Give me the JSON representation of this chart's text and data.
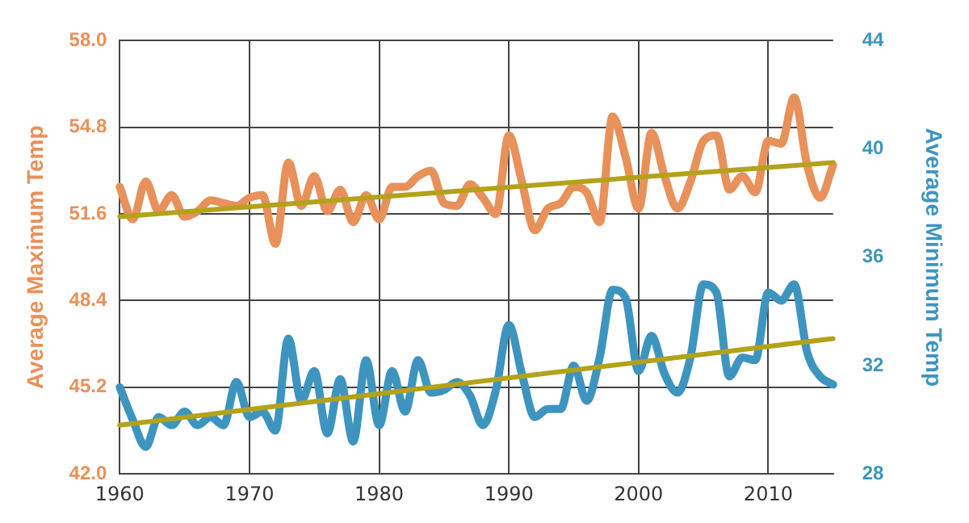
{
  "chart_data": {
    "type": "line",
    "ylabel": "Average Maximum Temp",
    "y2label": "Average Minimum Temp",
    "x": [
      1960,
      1961,
      1962,
      1963,
      1964,
      1965,
      1966,
      1967,
      1968,
      1969,
      1970,
      1971,
      1972,
      1973,
      1974,
      1975,
      1976,
      1977,
      1978,
      1979,
      1980,
      1981,
      1982,
      1983,
      1984,
      1985,
      1986,
      1987,
      1988,
      1989,
      1990,
      1991,
      1992,
      1993,
      1994,
      1995,
      1996,
      1997,
      1998,
      1999,
      2000,
      2001,
      2002,
      2003,
      2004,
      2005,
      2006,
      2007,
      2008,
      2009,
      2010,
      2011,
      2012,
      2013,
      2014,
      2015
    ],
    "series": [
      {
        "color": "#e8915a",
        "axis": "y",
        "values": [
          52.6,
          51.4,
          52.8,
          51.7,
          52.3,
          51.5,
          51.7,
          52.1,
          52.0,
          51.9,
          52.2,
          52.3,
          50.5,
          53.5,
          51.9,
          53.0,
          51.7,
          52.5,
          51.3,
          52.3,
          51.4,
          52.6,
          52.6,
          53.0,
          53.2,
          52.0,
          51.9,
          52.7,
          52.2,
          51.6,
          54.5,
          52.8,
          51.0,
          51.8,
          52.0,
          52.6,
          52.4,
          51.3,
          55.2,
          53.7,
          51.8,
          54.6,
          53.0,
          51.8,
          52.8,
          54.3,
          54.5,
          52.5,
          53.0,
          52.4,
          54.3,
          54.2,
          55.9,
          53.4,
          52.2,
          53.4
        ]
      },
      {
        "color": "#3d95bf",
        "axis": "y2",
        "values": [
          31.2,
          30.0,
          29.0,
          30.1,
          29.8,
          30.3,
          29.8,
          30.1,
          29.8,
          31.4,
          30.1,
          30.3,
          29.6,
          33.0,
          30.7,
          31.8,
          29.5,
          31.5,
          29.2,
          32.2,
          29.8,
          31.8,
          30.3,
          32.2,
          31.0,
          31.1,
          31.4,
          30.9,
          29.8,
          31.1,
          33.5,
          31.7,
          30.1,
          30.4,
          30.4,
          32.0,
          30.7,
          32.3,
          34.8,
          34.5,
          31.8,
          33.1,
          31.7,
          31.0,
          32.3,
          35.0,
          34.7,
          31.6,
          32.3,
          32.2,
          34.7,
          34.4,
          35.0,
          32.5,
          31.6,
          31.3
        ]
      },
      {
        "type": "line",
        "color": "#b3a21a",
        "axis": "y",
        "values": [
          51.5,
          null,
          null,
          null,
          null,
          null,
          null,
          null,
          null,
          null,
          null,
          null,
          null,
          null,
          null,
          null,
          null,
          null,
          null,
          null,
          null,
          null,
          null,
          null,
          null,
          null,
          null,
          null,
          null,
          null,
          null,
          null,
          null,
          null,
          null,
          null,
          null,
          null,
          null,
          null,
          null,
          null,
          null,
          null,
          null,
          null,
          null,
          null,
          null,
          null,
          null,
          null,
          null,
          null,
          null,
          53.5
        ]
      },
      {
        "type": "line",
        "color": "#b3a21a",
        "axis": "y2",
        "values": [
          29.8,
          null,
          null,
          null,
          null,
          null,
          null,
          null,
          null,
          null,
          null,
          null,
          null,
          null,
          null,
          null,
          null,
          null,
          null,
          null,
          null,
          null,
          null,
          null,
          null,
          null,
          null,
          null,
          null,
          null,
          null,
          null,
          null,
          null,
          null,
          null,
          null,
          null,
          null,
          null,
          null,
          null,
          null,
          null,
          null,
          null,
          null,
          null,
          null,
          null,
          null,
          null,
          null,
          null,
          null,
          33.0
        ]
      }
    ],
    "xlim": [
      1960,
      2015
    ],
    "xticks": [
      1960,
      1970,
      1980,
      1990,
      2000,
      2010
    ],
    "ylim": [
      42,
      58
    ],
    "yticks": [
      {
        "value": 42,
        "label": "42.0"
      },
      45.2,
      48.4,
      51.6,
      54.8,
      {
        "value": 58,
        "label": "58.0"
      }
    ],
    "y2lim": [
      28,
      44
    ],
    "y2ticks": [
      28,
      32,
      36,
      40,
      44
    ],
    "grid": true,
    "legend": false,
    "marker": "none",
    "line_style": "solid"
  }
}
